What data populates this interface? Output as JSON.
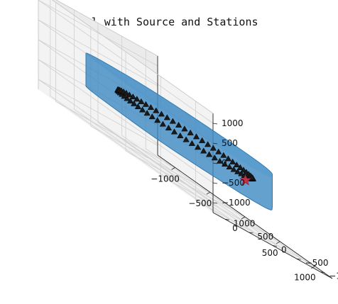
{
  "chart_data": {
    "type": "3d-scatter",
    "title": "STL Model with Source and Stations",
    "xlabel": "",
    "ylabel": "",
    "zlabel": "",
    "x_ticks": [
      "−1000",
      "−500",
      "0",
      "500",
      "1000"
    ],
    "y_ticks": [
      "1000",
      "500",
      "0",
      "−500",
      "−1000"
    ],
    "z_ticks": [
      "1000",
      "500",
      "0",
      "−500",
      "−1000"
    ],
    "xlim": [
      -1250,
      1250
    ],
    "ylim": [
      -1250,
      1250
    ],
    "zlim": [
      -1250,
      1250
    ],
    "grid": true,
    "model": {
      "name": "STL mesh",
      "shape": "flattened ellipsoid",
      "semi_axes": [
        1100,
        1100,
        400
      ],
      "color": "#3a87c0",
      "alpha": 0.78
    },
    "stations": {
      "count": 72,
      "radius": 800,
      "z": 0,
      "marker": "triangle",
      "color": "#1a1a1a"
    },
    "source": {
      "x": 450,
      "y": -600,
      "z": -200,
      "marker": "star",
      "color": "#c0314a"
    }
  }
}
